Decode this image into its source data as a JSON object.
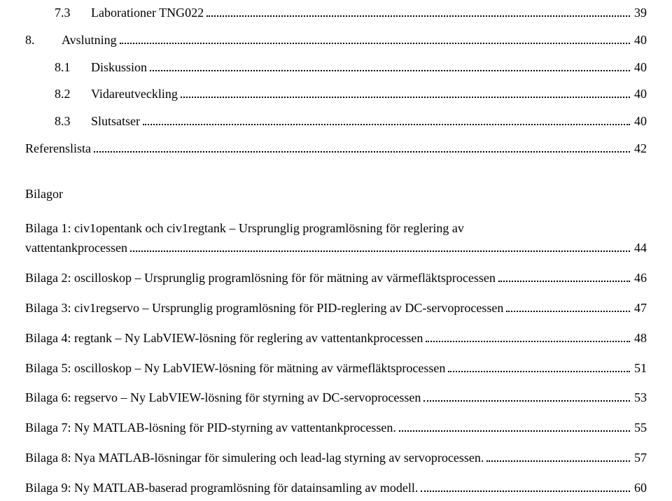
{
  "toc_top": [
    {
      "indent": 1,
      "num": "7.3",
      "title": "Laborationer TNG022",
      "page": "39"
    },
    {
      "indent": 0,
      "num": "8.",
      "title": "Avslutning",
      "page": "40"
    },
    {
      "indent": 1,
      "num": "8.1",
      "title": "Diskussion",
      "page": "40"
    },
    {
      "indent": 1,
      "num": "8.2",
      "title": "Vidareutveckling",
      "page": "40"
    },
    {
      "indent": 1,
      "num": "8.3",
      "title": "Slutsatser",
      "page": "40"
    },
    {
      "indent": 0,
      "num": "",
      "title": "Referenslista",
      "page": "42"
    }
  ],
  "bilagor_heading": "Bilagor",
  "bilagor": [
    {
      "line1": "Bilaga 1: civ1opentank och civ1regtank – Ursprunglig programlösning för reglering av",
      "line2": "vattentankprocessen",
      "page": "44"
    },
    {
      "line1": "Bilaga 2: oscilloskop – Ursprunglig programlösning för för mätning av värmefläktsprocessen",
      "page": "46"
    },
    {
      "line1": "Bilaga 3: civ1regservo – Ursprunglig programlösning för PID-reglering av DC-servoprocessen",
      "page": "47"
    },
    {
      "line1": "Bilaga 4: regtank – Ny LabVIEW-lösning för reglering av vattentankprocessen",
      "page": "48"
    },
    {
      "line1": "Bilaga 5: oscilloskop – Ny LabVIEW-lösning för mätning av värmefläktsprocessen",
      "page": "51"
    },
    {
      "line1": "Bilaga 6: regservo – Ny LabVIEW-lösning för styrning av DC-servoprocessen",
      "page": "53"
    },
    {
      "line1": "Bilaga 7: Ny MATLAB-lösning för PID-styrning av vattentankprocessen.",
      "page": "55"
    },
    {
      "line1": "Bilaga 8: Nya MATLAB-lösningar för simulering och lead-lag styrning av servoprocessen.",
      "page": "57"
    },
    {
      "line1": "Bilaga 9: Ny MATLAB-baserad programlösning för datainsamling av modell.",
      "page": "60"
    }
  ]
}
